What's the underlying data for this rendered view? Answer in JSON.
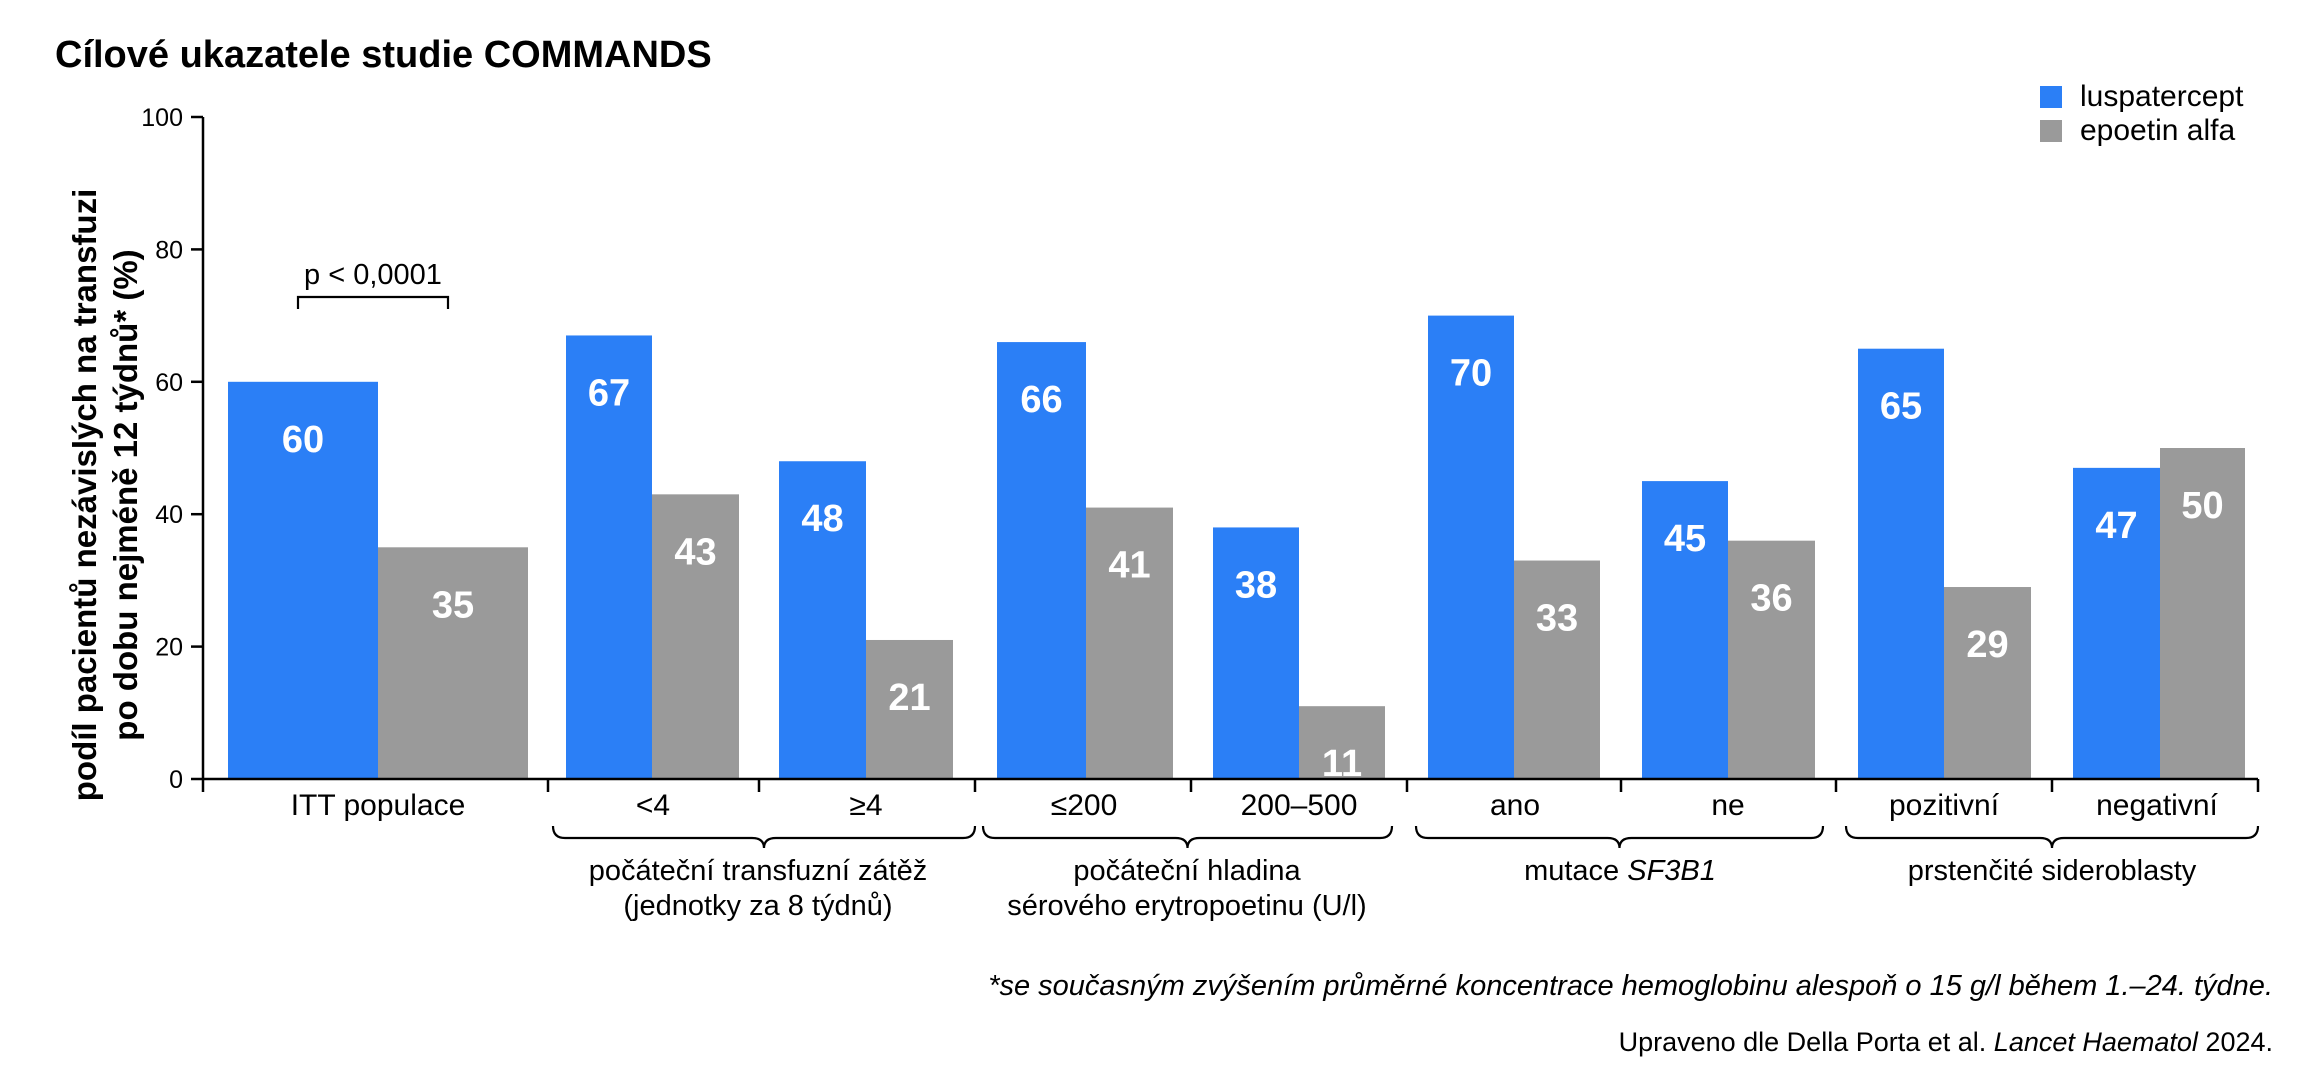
{
  "chart_data": {
    "type": "bar",
    "title": "Cílové ukazatele studie COMMANDS",
    "ylabel_lines": [
      "podíl pacientů nezávislých na transfuzi",
      "po dobu nejméně 12 týdnů* (%)"
    ],
    "ylim": [
      0,
      100
    ],
    "yticks": [
      0,
      20,
      40,
      60,
      80,
      100
    ],
    "categories": [
      "ITT populace",
      "<4",
      "≥4",
      "≤200",
      "200–500",
      "ano",
      "ne",
      "pozitivní",
      "negativní"
    ],
    "series": [
      {
        "name": "luspatercept",
        "color": "#2b7ff6",
        "values": [
          60,
          67,
          48,
          66,
          38,
          70,
          45,
          65,
          47
        ]
      },
      {
        "name": "epoetin alfa",
        "color": "#9a9a9a",
        "values": [
          35,
          43,
          21,
          41,
          11,
          33,
          36,
          29,
          50
        ]
      }
    ],
    "groups": [
      {
        "lines": [
          "počáteční transfuzní zátěž",
          "(jednotky za 8 týdnů)"
        ],
        "categories": [
          1,
          2
        ]
      },
      {
        "lines": [
          "počáteční hladina",
          "sérového erytropoetinu (U/l)"
        ],
        "categories": [
          3,
          4
        ]
      },
      {
        "lines": [
          "mutace ",
          "SF3B1"
        ],
        "categories": [
          5,
          6
        ],
        "italic_suffix": true
      },
      {
        "lines": [
          "prstenčité sideroblasty"
        ],
        "categories": [
          7,
          8
        ]
      }
    ],
    "annotation": {
      "text": "p < 0,0001",
      "category": 0
    },
    "legend_position": "top-right",
    "grid": false
  },
  "footnote": "*se současným zvýšením průměrné koncentrace hemoglobinu alespoň o 15 g/l během 1.–24. týdne.",
  "source": {
    "prefix": "Upraveno dle Della Porta et al. ",
    "journal": "Lancet Haematol",
    "suffix": " 2024."
  }
}
